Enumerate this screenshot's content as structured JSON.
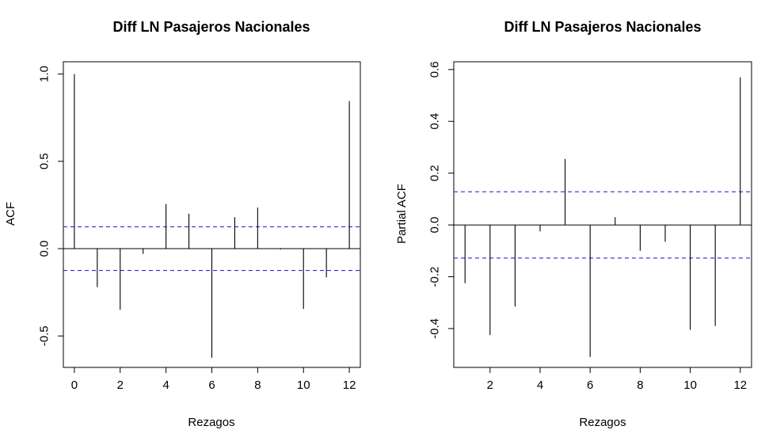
{
  "chart_data": [
    {
      "type": "bar",
      "title": "Diff LN Pasajeros Nacionales",
      "xlabel": "Rezagos",
      "ylabel": "ACF",
      "xlim": [
        -0.48,
        12.48
      ],
      "ylim": [
        -0.68,
        1.07
      ],
      "x_ticks": [
        0,
        2,
        4,
        6,
        8,
        10,
        12
      ],
      "x_tick_labels": [
        "0",
        "2",
        "4",
        "6",
        "8",
        "10",
        "12"
      ],
      "y_ticks": [
        -0.5,
        0.0,
        0.5,
        1.0
      ],
      "y_tick_labels": [
        "-0.5",
        "0.0",
        "0.5",
        "1.0"
      ],
      "ci": 0.125,
      "ci_color": "#2b2bd6",
      "x": [
        0,
        1,
        2,
        3,
        4,
        5,
        6,
        7,
        8,
        9,
        10,
        11,
        12
      ],
      "values": [
        1.0,
        -0.22,
        -0.35,
        -0.03,
        0.255,
        0.2,
        -0.625,
        0.18,
        0.235,
        -0.005,
        -0.345,
        -0.165,
        0.845
      ]
    },
    {
      "type": "bar",
      "title": "Diff LN Pasajeros Nacionales",
      "xlabel": "Rezagos",
      "ylabel": "Partial ACF",
      "xlim": [
        0.55,
        12.45
      ],
      "ylim": [
        -0.55,
        0.63
      ],
      "x_ticks": [
        2,
        4,
        6,
        8,
        10,
        12
      ],
      "x_tick_labels": [
        "2",
        "4",
        "6",
        "8",
        "10",
        "12"
      ],
      "y_ticks": [
        -0.4,
        -0.2,
        0.0,
        0.2,
        0.4,
        0.6
      ],
      "y_tick_labels": [
        "-0.4",
        "-0.2",
        "0.0",
        "0.2",
        "0.4",
        "0.6"
      ],
      "ci": 0.128,
      "ci_color": "#2b2bd6",
      "x": [
        1,
        2,
        3,
        4,
        5,
        6,
        7,
        8,
        9,
        10,
        11,
        12
      ],
      "values": [
        -0.225,
        -0.425,
        -0.315,
        -0.025,
        0.255,
        -0.51,
        0.03,
        -0.1,
        -0.065,
        -0.405,
        -0.39,
        0.57
      ]
    }
  ]
}
